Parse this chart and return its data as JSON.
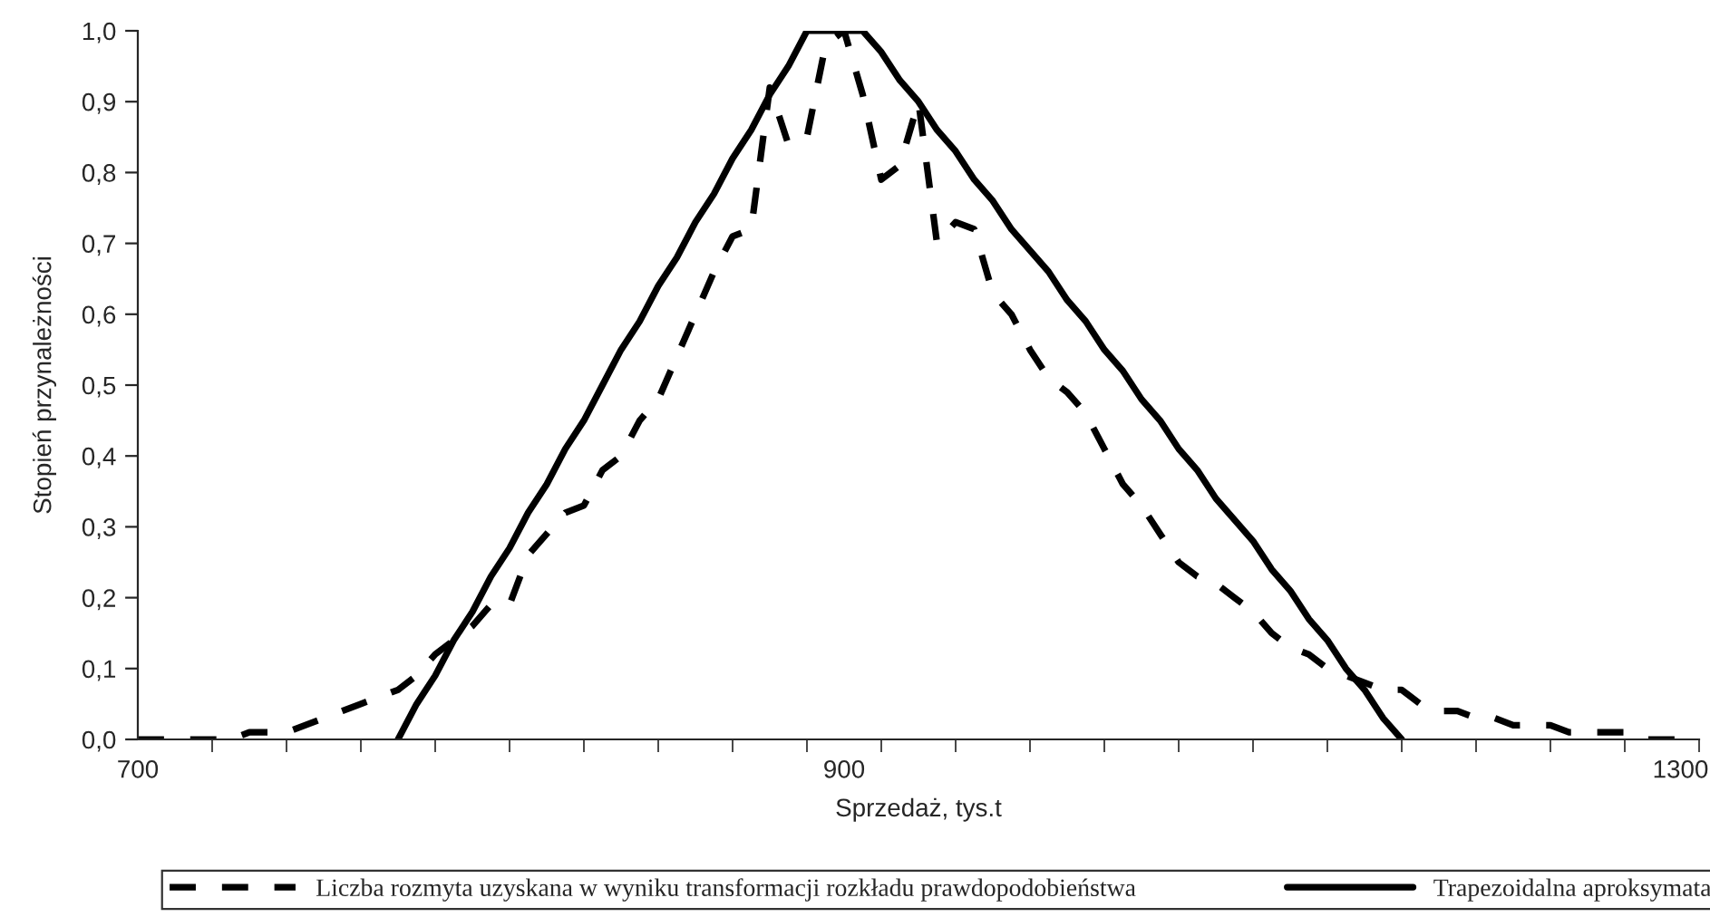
{
  "chart_data": {
    "type": "line",
    "xlabel": "Sprzedaż, tys.t",
    "ylabel": "Stopień przynależności",
    "categories": [
      "700",
      null,
      null,
      null,
      null,
      null,
      null,
      null,
      null,
      null,
      null,
      null,
      null,
      null,
      null,
      null,
      null,
      null,
      null,
      null,
      null,
      null,
      null,
      null,
      null,
      null,
      null,
      null,
      null,
      null,
      null,
      null,
      null,
      null,
      null,
      null,
      null,
      null,
      "900",
      null,
      null,
      null,
      null,
      null,
      null,
      null,
      null,
      null,
      null,
      null,
      null,
      null,
      null,
      null,
      null,
      null,
      null,
      null,
      null,
      null,
      null,
      null,
      null,
      null,
      null,
      null,
      null,
      null,
      null,
      null,
      null,
      null,
      null,
      null,
      null,
      null,
      null,
      null,
      null,
      null,
      null,
      null,
      null,
      "1300",
      null
    ],
    "ylim": [
      0,
      1
    ],
    "yticks": [
      {
        "value": 0,
        "label": "0,0"
      },
      {
        "value": 0.1,
        "label": "0,1"
      },
      {
        "value": 0.2,
        "label": "0,2"
      },
      {
        "value": 0.3,
        "label": "0,3"
      },
      {
        "value": 0.4,
        "label": "0,4"
      },
      {
        "value": 0.5,
        "label": "0,5"
      },
      {
        "value": 0.6,
        "label": "0,6"
      },
      {
        "value": 0.7,
        "label": "0,7"
      },
      {
        "value": 0.8,
        "label": "0,8"
      },
      {
        "value": 0.9,
        "label": "0,9"
      },
      {
        "value": 1,
        "label": "1,0"
      }
    ],
    "series": [
      {
        "name": "Liczba rozmyta uzyskana w wyniku transformacji rozkładu prawdopodobieństwa",
        "color": "#000000",
        "line_style": "dashed",
        "values": [
          0,
          0,
          0,
          0,
          0,
          0,
          0.01,
          0.01,
          0.01,
          0.02,
          0.03,
          0.04,
          0.05,
          0.06,
          0.07,
          0.09,
          0.12,
          0.14,
          0.16,
          0.19,
          0.19,
          0.26,
          0.29,
          0.32,
          0.33,
          0.38,
          0.4,
          0.45,
          0.48,
          0.54,
          0.6,
          0.66,
          0.71,
          0.72,
          0.92,
          0.84,
          0.85,
          0.98,
          1.0,
          0.91,
          0.79,
          0.81,
          0.9,
          0.7,
          0.73,
          0.72,
          0.63,
          0.6,
          0.55,
          0.51,
          0.49,
          0.46,
          0.41,
          0.36,
          0.33,
          0.29,
          0.25,
          0.23,
          0.22,
          0.2,
          0.18,
          0.15,
          0.13,
          0.12,
          0.1,
          0.09,
          0.08,
          0.07,
          0.07,
          0.05,
          0.04,
          0.04,
          0.03,
          0.03,
          0.02,
          0.02,
          0.02,
          0.01,
          0.01,
          0.01,
          0.01,
          0,
          0,
          0,
          0
        ]
      },
      {
        "name": "Trapezoidalna aproksymata",
        "color": "#000000",
        "line_style": "solid",
        "values": [
          null,
          null,
          null,
          null,
          null,
          null,
          null,
          null,
          null,
          null,
          null,
          null,
          null,
          null,
          0,
          0.05,
          0.09,
          0.14,
          0.18,
          0.23,
          0.27,
          0.32,
          0.36,
          0.41,
          0.45,
          0.5,
          0.55,
          0.59,
          0.64,
          0.68,
          0.73,
          0.77,
          0.82,
          0.86,
          0.91,
          0.95,
          1,
          1,
          1,
          1,
          0.97,
          0.93,
          0.9,
          0.86,
          0.83,
          0.79,
          0.76,
          0.72,
          0.69,
          0.66,
          0.62,
          0.59,
          0.55,
          0.52,
          0.48,
          0.45,
          0.41,
          0.38,
          0.34,
          0.31,
          0.28,
          0.24,
          0.21,
          0.17,
          0.14,
          0.1,
          0.07,
          0.03,
          0,
          null,
          null,
          null,
          null,
          null,
          null,
          null,
          null,
          null,
          null,
          null,
          null,
          null,
          null,
          null,
          null
        ]
      }
    ],
    "legend": "bottom",
    "grid": false
  }
}
